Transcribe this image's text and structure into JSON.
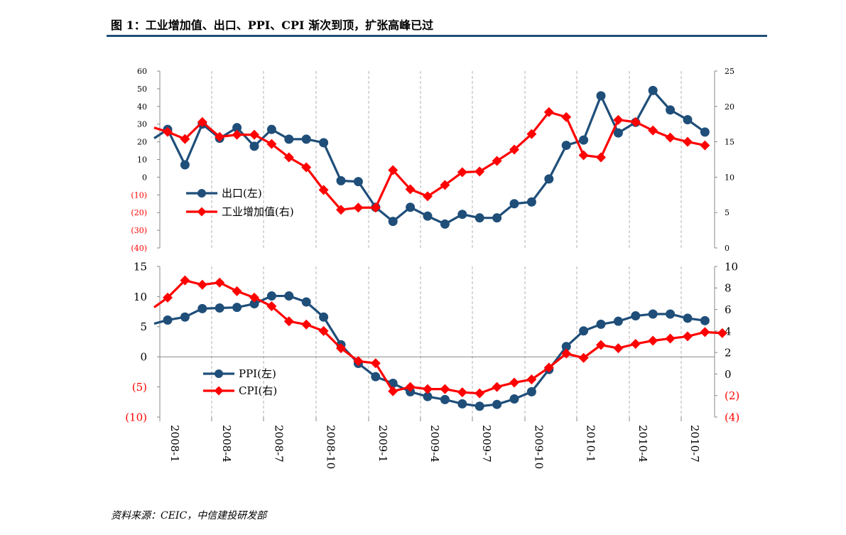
{
  "title": "图 1：工业增加值、出口、PPI、CPI 渐次到顶，扩张高峰已过",
  "source": "资料来源：CEIC，中信建投研发部",
  "colors": {
    "blue": "#1f4e79",
    "red": "#ff0000",
    "rule": "#1f4e79",
    "axis": "#888888",
    "grid": "#b0b0b0"
  },
  "chart_data": [
    {
      "type": "line",
      "panel": "top",
      "legend_position": "left-middle",
      "x_tick_labels": [
        "2008-1",
        "2008-4",
        "2008-7",
        "2008-10",
        "2009-1",
        "2009-4",
        "2009-7",
        "2009-10",
        "2010-1",
        "2010-4",
        "2010-7"
      ],
      "left_axis": {
        "range": [
          -40,
          60
        ],
        "ticks": [
          60,
          50,
          40,
          30,
          20,
          10,
          0,
          -10,
          -20,
          -30,
          -40
        ],
        "tick_labels": [
          "60",
          "50",
          "40",
          "30",
          "20",
          "10",
          "0",
          "(10)",
          "(20)",
          "(30)",
          "(40)"
        ]
      },
      "right_axis": {
        "range": [
          0,
          25
        ],
        "ticks": [
          25,
          20,
          15,
          10,
          5,
          0
        ],
        "tick_labels": [
          "25",
          "20",
          "15",
          "10",
          "5",
          "0"
        ]
      },
      "series": [
        {
          "name": "出口(左)",
          "axis": "left",
          "start": 22,
          "values": [
            27,
            7,
            30,
            22,
            28,
            17.5,
            27,
            21.5,
            21.5,
            19.5,
            -2,
            -2.5,
            -17,
            -25,
            -17,
            -22,
            -26.5,
            -21,
            -23,
            -23,
            -15,
            -14,
            -1,
            18,
            21,
            46,
            25,
            31,
            49,
            38,
            32.5,
            25.5
          ]
        },
        {
          "name": "工业增加值(右)",
          "axis": "right",
          "start": 17,
          "values": [
            16.4,
            15.4,
            17.8,
            15.7,
            16.0,
            16.0,
            14.7,
            12.8,
            11.4,
            8.2,
            5.4,
            5.7,
            5.7,
            11.0,
            8.3,
            7.3,
            8.9,
            10.7,
            10.8,
            12.3,
            13.9,
            16.1,
            19.2,
            18.5,
            13.1,
            12.8,
            18.1,
            17.8,
            16.6,
            15.6,
            15.0,
            14.5
          ]
        }
      ]
    },
    {
      "type": "line",
      "panel": "bottom",
      "legend_position": "left-bottom",
      "left_axis": {
        "range": [
          -10,
          15
        ],
        "ticks": [
          15,
          10,
          5,
          0,
          -5,
          -10
        ],
        "tick_labels": [
          "15",
          "10",
          "5",
          "0",
          "(5)",
          "(10)"
        ]
      },
      "right_axis": {
        "range": [
          -4,
          10
        ],
        "ticks": [
          10,
          8,
          6,
          4,
          2,
          0,
          -2,
          -4
        ],
        "tick_labels": [
          "10",
          "8",
          "6",
          "4",
          "2",
          "0",
          "(2)",
          "(4)"
        ]
      },
      "series": [
        {
          "name": "PPI(左)",
          "axis": "left",
          "start": 5.5,
          "values": [
            6.1,
            6.6,
            8.0,
            8.1,
            8.2,
            8.8,
            10.1,
            10.1,
            9.1,
            6.6,
            2.0,
            -1.1,
            -3.3,
            -4.4,
            -5.8,
            -6.6,
            -7.1,
            -7.8,
            -8.2,
            -7.9,
            -7.0,
            -5.8,
            -2.1,
            1.7,
            4.3,
            5.4,
            5.9,
            6.8,
            7.1,
            7.1,
            6.4,
            6.0
          ]
        },
        {
          "name": "CPI(右)",
          "axis": "right",
          "start": 6.2,
          "values": [
            7.1,
            8.7,
            8.3,
            8.5,
            7.7,
            7.1,
            6.3,
            4.9,
            4.6,
            4.0,
            2.4,
            1.2,
            1.0,
            -1.6,
            -1.2,
            -1.4,
            -1.4,
            -1.7,
            -1.8,
            -1.2,
            -0.8,
            -0.5,
            0.6,
            1.9,
            1.5,
            2.7,
            2.4,
            2.8,
            3.1,
            3.3,
            3.5,
            3.9,
            3.8
          ]
        }
      ]
    }
  ]
}
